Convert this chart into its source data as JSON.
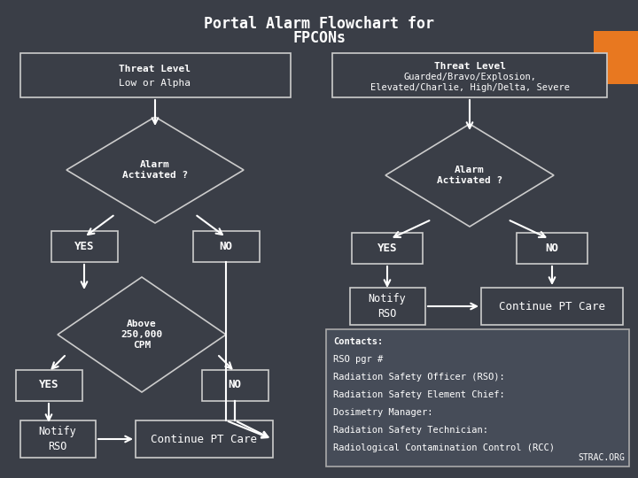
{
  "title_line1": "Portal Alarm Flowchart for",
  "title_line2": "FPCONs",
  "bg_color": "#3a3e47",
  "box_bg": "#3a3e47",
  "box_edge": "#cccccc",
  "text_color": "#ffffff",
  "contacts_bg": "#464c58",
  "contacts_edge": "#aaaaaa",
  "orange_color": "#e87820",
  "contacts_lines": [
    "Contacts:",
    "RSO pgr #",
    "Radiation Safety Officer (RSO):",
    "Radiation Safety Element Chief:",
    "Dosimetry Manager:",
    "Radiation Safety Technician:",
    "Radiological Contamination Control (RCC)"
  ],
  "strac": "STRAC.ORG"
}
